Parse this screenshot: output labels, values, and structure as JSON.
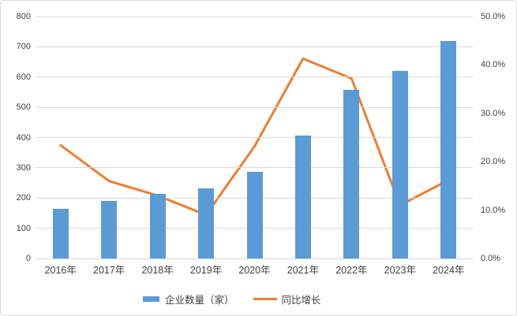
{
  "chart_data": {
    "type": "combo-bar-line",
    "title": "",
    "categories": [
      "2016年",
      "2017年",
      "2018年",
      "2019年",
      "2020年",
      "2021年",
      "2022年",
      "2023年",
      "2024年"
    ],
    "series": [
      {
        "name": "企业数量（家）",
        "type": "bar",
        "axis": "left",
        "color": "#5B9BD5",
        "values": [
          163,
          190,
          214,
          233,
          286,
          406,
          557,
          619,
          720
        ]
      },
      {
        "name": "同比增长",
        "type": "line",
        "axis": "right",
        "color": "#ED7D31",
        "values": [
          23.4,
          16.0,
          13.0,
          9.0,
          23.2,
          41.3,
          37.2,
          11.0,
          16.2
        ]
      }
    ],
    "left_axis": {
      "min": 0,
      "max": 800,
      "step": 100,
      "ticks": [
        "0",
        "100",
        "200",
        "300",
        "400",
        "500",
        "600",
        "700",
        "800"
      ]
    },
    "right_axis": {
      "min": 0,
      "max": 50,
      "step": 10,
      "ticks": [
        "0.0%",
        "10.0%",
        "20.0%",
        "30.0%",
        "40.0%",
        "50.0%"
      ]
    },
    "grid": true,
    "legend_position": "bottom",
    "colors": {
      "background": "#FFFFFF",
      "border": "#D9D9D9",
      "gridline": "#D9D9D9",
      "text": "#404040"
    }
  }
}
